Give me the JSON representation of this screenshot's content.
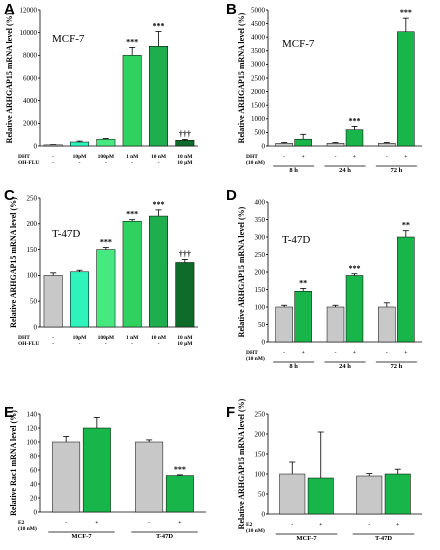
{
  "colors": {
    "control": "#c8c8c8",
    "treated": "#18b54a",
    "aqua": "#2ef3ba",
    "light_green": "#46e87f",
    "mid_green": "#1fae4e",
    "dark_green": "#0e6b2a"
  },
  "chart_data": [
    {
      "panel": "A",
      "type": "bar",
      "cell_line": "MCF-7",
      "ylabel": "Relative ARHGAP15 mRNA level (%)",
      "ylim": [
        0,
        12000
      ],
      "yticks": [
        "0",
        "2000",
        "4000",
        "6000",
        "8000",
        "10000",
        "12000"
      ],
      "row_labels": [
        "DHT",
        "OH-FLU"
      ],
      "bars": [
        {
          "value": 100,
          "error": 20,
          "sig": "",
          "color": "#c8c8c8",
          "row1": "-",
          "row2": "-"
        },
        {
          "value": 350,
          "error": 80,
          "sig": "",
          "color": "#2ef3ba",
          "row1": "10pM",
          "row2": "-"
        },
        {
          "value": 600,
          "error": 60,
          "sig": "",
          "color": "#46e87f",
          "row1": "100pM",
          "row2": "-"
        },
        {
          "value": 8000,
          "error": 700,
          "sig": "***",
          "color": "#2fd15f",
          "row1": "1 nM",
          "row2": "-"
        },
        {
          "value": 8800,
          "error": 1300,
          "sig": "***",
          "color": "#1fae4e",
          "row1": "10 nM",
          "row2": "-"
        },
        {
          "value": 500,
          "error": 80,
          "sig": "†††",
          "color": "#0e6b2a",
          "row1": "10 nM",
          "row2": "10 µM"
        }
      ]
    },
    {
      "panel": "B",
      "type": "bar",
      "cell_line": "MCF-7",
      "ylabel": "Relative ARHGAP15 mRNA level (%)",
      "ylim": [
        0,
        5000
      ],
      "yticks": [
        "0",
        "500",
        "1000",
        "1500",
        "2000",
        "2500",
        "3000",
        "3500",
        "4000",
        "4500",
        "5000"
      ],
      "row_labels": [
        "DHT",
        "(10 nM)"
      ],
      "groups": [
        "8 h",
        "24 h",
        "72 h"
      ],
      "bars": [
        {
          "value": 100,
          "error": 30,
          "sig": "",
          "color": "#c8c8c8",
          "row1": "-"
        },
        {
          "value": 250,
          "error": 180,
          "sig": "",
          "color": "#18b54a",
          "row1": "+"
        },
        {
          "value": 100,
          "error": 30,
          "sig": "",
          "color": "#c8c8c8",
          "row1": "-"
        },
        {
          "value": 600,
          "error": 120,
          "sig": "***",
          "color": "#18b54a",
          "row1": "+"
        },
        {
          "value": 100,
          "error": 30,
          "sig": "",
          "color": "#c8c8c8",
          "row1": "-"
        },
        {
          "value": 4200,
          "error": 500,
          "sig": "***",
          "color": "#18b54a",
          "row1": "+"
        }
      ]
    },
    {
      "panel": "C",
      "type": "bar",
      "cell_line": "T-47D",
      "ylabel": "Relative ARHGAP15 mRNA level (%)",
      "ylim": [
        0,
        250
      ],
      "yticks": [
        "0",
        "50",
        "100",
        "150",
        "200",
        "250"
      ],
      "row_labels": [
        "DHT",
        "OH-FLU"
      ],
      "bars": [
        {
          "value": 100,
          "error": 5,
          "sig": "",
          "color": "#c8c8c8",
          "row1": "-",
          "row2": "-"
        },
        {
          "value": 107,
          "error": 3,
          "sig": "",
          "color": "#2ef3ba",
          "row1": "10pM",
          "row2": "-"
        },
        {
          "value": 150,
          "error": 4,
          "sig": "***",
          "color": "#46e87f",
          "row1": "100pM",
          "row2": "-"
        },
        {
          "value": 205,
          "error": 3,
          "sig": "***",
          "color": "#2fd15f",
          "row1": "1 nM",
          "row2": "-"
        },
        {
          "value": 215,
          "error": 12,
          "sig": "***",
          "color": "#1fae4e",
          "row1": "10 nM",
          "row2": "-"
        },
        {
          "value": 125,
          "error": 6,
          "sig": "†††",
          "color": "#0e6b2a",
          "row1": "10 nM",
          "row2": "10 µM"
        }
      ]
    },
    {
      "panel": "D",
      "type": "bar",
      "cell_line": "T-47D",
      "ylabel": "Relative ARHGAP15 mRNA level (%)",
      "ylim": [
        0,
        400
      ],
      "yticks": [
        "0",
        "50",
        "100",
        "150",
        "200",
        "250",
        "300",
        "350",
        "400"
      ],
      "row_labels": [
        "DHT",
        "(10 nM)"
      ],
      "groups": [
        "8 h",
        "24 h",
        "72 h"
      ],
      "bars": [
        {
          "value": 100,
          "error": 5,
          "sig": "",
          "color": "#c8c8c8",
          "row1": "-"
        },
        {
          "value": 145,
          "error": 8,
          "sig": "**",
          "color": "#18b54a",
          "row1": "+"
        },
        {
          "value": 100,
          "error": 5,
          "sig": "",
          "color": "#c8c8c8",
          "row1": "-"
        },
        {
          "value": 190,
          "error": 5,
          "sig": "***",
          "color": "#18b54a",
          "row1": "+"
        },
        {
          "value": 100,
          "error": 12,
          "sig": "",
          "color": "#c8c8c8",
          "row1": "-"
        },
        {
          "value": 300,
          "error": 18,
          "sig": "**",
          "color": "#18b54a",
          "row1": "+"
        }
      ]
    },
    {
      "panel": "E",
      "type": "bar",
      "cell_line": "",
      "ylabel": "Relative Rac1 mRNA level (%)",
      "ylim": [
        0,
        140
      ],
      "yticks": [
        "0",
        "20",
        "40",
        "60",
        "80",
        "100",
        "120",
        "140"
      ],
      "row_labels": [
        "E2",
        "(10 nM)"
      ],
      "groups": [
        "MCF-7",
        "T-47D"
      ],
      "bars": [
        {
          "value": 100,
          "error": 8,
          "sig": "",
          "color": "#c8c8c8",
          "row1": "-"
        },
        {
          "value": 120,
          "error": 15,
          "sig": "",
          "color": "#18b54a",
          "row1": "+"
        },
        {
          "value": 100,
          "error": 3,
          "sig": "",
          "color": "#c8c8c8",
          "row1": "-"
        },
        {
          "value": 52,
          "error": 1,
          "sig": "***",
          "color": "#18b54a",
          "row1": "+"
        }
      ]
    },
    {
      "panel": "F",
      "type": "bar",
      "cell_line": "",
      "ylabel": "Relative ARHGAP15 mRNA level (%)",
      "ylim": [
        0,
        250
      ],
      "yticks": [
        "0",
        "50",
        "100",
        "150",
        "200",
        "250"
      ],
      "row_labels": [
        "E2",
        "(10 nM)"
      ],
      "groups": [
        "MCF-7",
        "T-47D"
      ],
      "bars": [
        {
          "value": 100,
          "error": 30,
          "sig": "",
          "color": "#c8c8c8",
          "row1": "-"
        },
        {
          "value": 90,
          "error": 115,
          "sig": "",
          "color": "#18b54a",
          "row1": "+"
        },
        {
          "value": 95,
          "error": 6,
          "sig": "",
          "color": "#c8c8c8",
          "row1": "-"
        },
        {
          "value": 100,
          "error": 12,
          "sig": "",
          "color": "#18b54a",
          "row1": "+"
        }
      ]
    }
  ]
}
